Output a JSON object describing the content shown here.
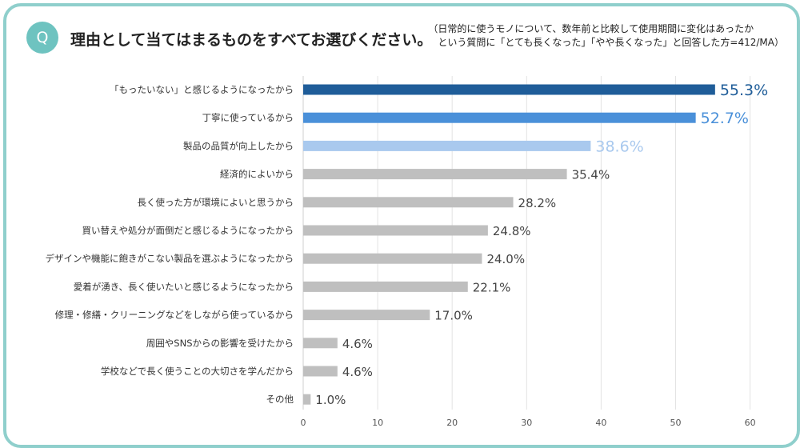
{
  "header": {
    "badge": "Q",
    "question": "理由として当てはまるものをすべてお選びください。",
    "note_line1": "（日常的に使うモノについて、数年前と比較して使用期間に変化はあったか",
    "note_line2": "という質問に「とても長くなった」「やや長くなった」と回答した方=412/MA）"
  },
  "chart_data": {
    "type": "bar",
    "orientation": "horizontal",
    "categories": [
      "「もったいない」と感じるようになったから",
      "丁寧に使っているから",
      "製品の品質が向上したから",
      "経済的によいから",
      "長く使った方が環境によいと思うから",
      "買い替えや処分が面倒だと感じるようになったから",
      "デザインや機能に飽きがこない製品を選ぶようになったから",
      "愛着が湧き、長く使いたいと感じるようになったから",
      "修理・修繕・クリーニングなどをしながら使っているから",
      "周囲やSNSからの影響を受けたから",
      "学校などで長く使うことの大切さを学んだから",
      "その他"
    ],
    "values": [
      55.3,
      52.7,
      38.6,
      35.4,
      28.2,
      24.8,
      24.0,
      22.1,
      17.0,
      4.6,
      4.6,
      1.0
    ],
    "value_labels": [
      "55.3%",
      "52.7%",
      "38.6%",
      "35.4%",
      "28.2%",
      "24.8%",
      "24.0%",
      "22.1%",
      "17.0%",
      "4.6%",
      "4.6%",
      "1.0%"
    ],
    "bar_colors": [
      "#1f5d99",
      "#4a90d9",
      "#a9c9ee",
      "#bfbfbf",
      "#bfbfbf",
      "#bfbfbf",
      "#bfbfbf",
      "#bfbfbf",
      "#bfbfbf",
      "#bfbfbf",
      "#bfbfbf",
      "#bfbfbf"
    ],
    "label_colors": [
      "#1f5d99",
      "#4a90d9",
      "#a9c9ee",
      "#444444",
      "#444444",
      "#444444",
      "#444444",
      "#444444",
      "#444444",
      "#444444",
      "#444444",
      "#444444"
    ],
    "xlim": [
      0,
      60
    ],
    "xticks": [
      0,
      10,
      20,
      30,
      40,
      50,
      60
    ],
    "xtick_labels": [
      "0",
      "10",
      "20",
      "30",
      "40",
      "50",
      "60"
    ],
    "grid": true
  }
}
